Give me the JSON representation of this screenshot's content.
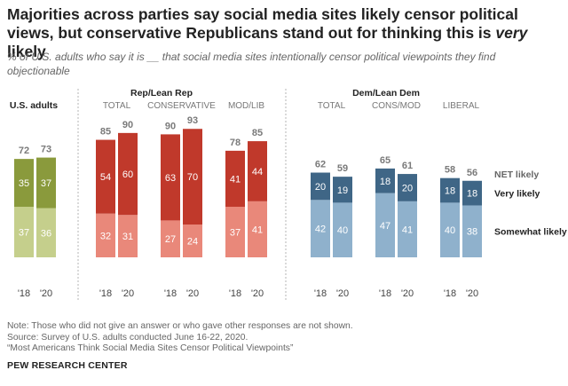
{
  "title_part1": "Majorities across parties say social media sites likely censor political views, but conservative Republicans stand out for thinking this is ",
  "title_emph": "very",
  "title_part2": " likely",
  "subtitle": "% of U.S. adults who say it is __ that social media sites intentionally censor political viewpoints they find objectionable",
  "notes": [
    "Note: Those who did not give an answer or who gave other responses are not shown.",
    "Source: Survey of U.S. adults conducted June 16-22, 2020.",
    "“Most Americans Think Social Media Sites Censor Political Viewpoints”"
  ],
  "org": "PEW RESEARCH CENTER",
  "colors": {
    "olive_dark": "#8a9a3c",
    "olive_light": "#c5cf8c",
    "red_dark": "#c0392b",
    "red_light": "#e9887a",
    "blue_dark": "#3f6686",
    "blue_light": "#8fb1cc",
    "net_text": "#7a7a7a"
  },
  "chart_data": {
    "type": "bar",
    "stacked": true,
    "series": [
      {
        "name": "Somewhat likely",
        "key": "somewhat"
      },
      {
        "name": "Very likely",
        "key": "very"
      },
      {
        "name": "NET likely",
        "key": "net"
      }
    ],
    "groups": [
      {
        "title": "U.S. adults",
        "subgroups": [
          {
            "label": "",
            "bars": [
              {
                "year": "'18",
                "very": 35,
                "somewhat": 37,
                "net": 72
              },
              {
                "year": "'20",
                "very": 37,
                "somewhat": 36,
                "net": 73
              }
            ]
          }
        ]
      },
      {
        "title": "Rep/Lean Rep",
        "subgroups": [
          {
            "label": "TOTAL",
            "bars": [
              {
                "year": "'18",
                "very": 54,
                "somewhat": 32,
                "net": 85
              },
              {
                "year": "'20",
                "very": 60,
                "somewhat": 31,
                "net": 90
              }
            ]
          },
          {
            "label": "CONSERVATIVE",
            "bars": [
              {
                "year": "'18",
                "very": 63,
                "somewhat": 27,
                "net": 90
              },
              {
                "year": "'20",
                "very": 70,
                "somewhat": 24,
                "net": 93
              }
            ]
          },
          {
            "label": "MOD/LIB",
            "bars": [
              {
                "year": "'18",
                "very": 41,
                "somewhat": 37,
                "net": 78
              },
              {
                "year": "'20",
                "very": 44,
                "somewhat": 41,
                "net": 85
              }
            ]
          }
        ]
      },
      {
        "title": "Dem/Lean Dem",
        "subgroups": [
          {
            "label": "TOTAL",
            "bars": [
              {
                "year": "'18",
                "very": 20,
                "somewhat": 42,
                "net": 62
              },
              {
                "year": "'20",
                "very": 19,
                "somewhat": 40,
                "net": 59
              }
            ]
          },
          {
            "label": "CONS/MOD",
            "bars": [
              {
                "year": "'18",
                "very": 18,
                "somewhat": 47,
                "net": 65
              },
              {
                "year": "'20",
                "very": 20,
                "somewhat": 41,
                "net": 61
              }
            ]
          },
          {
            "label": "LIBERAL",
            "bars": [
              {
                "year": "'18",
                "very": 18,
                "somewhat": 40,
                "net": 58
              },
              {
                "year": "'20",
                "very": 18,
                "somewhat": 38,
                "net": 56
              }
            ]
          }
        ]
      }
    ],
    "legend": {
      "net": "NET likely",
      "very": "Very likely",
      "somewhat": "Somewhat likely",
      "placement": "right"
    }
  }
}
